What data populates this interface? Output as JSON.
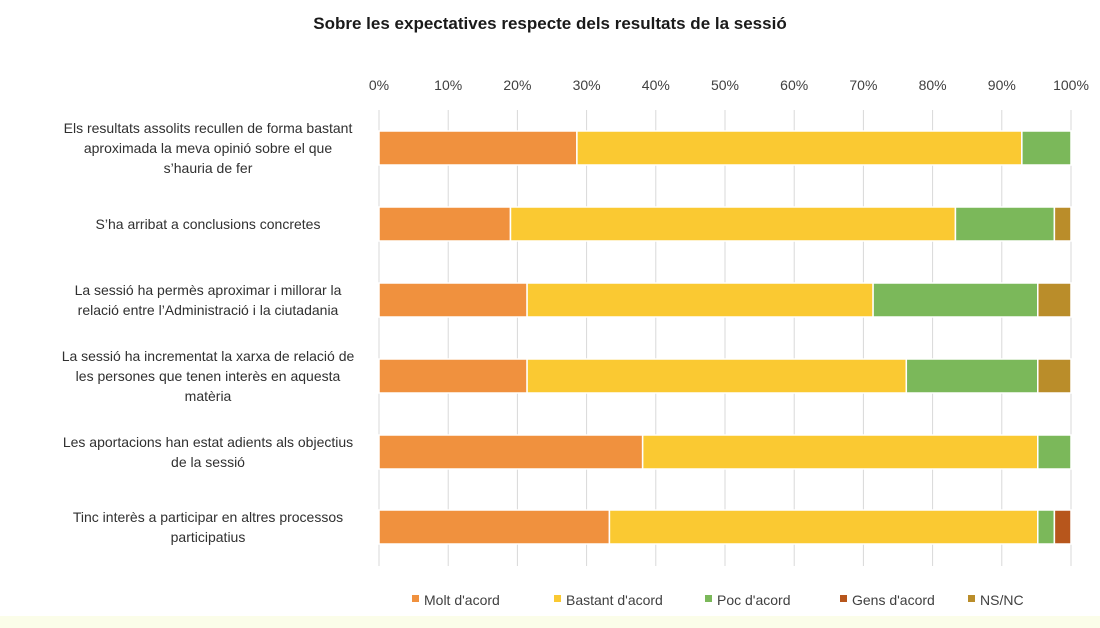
{
  "chart_data": {
    "type": "bar",
    "orientation": "horizontal",
    "stacked": "percent",
    "title": "Sobre les expectatives respecte dels resultats de la sessió",
    "xlim": [
      0,
      100
    ],
    "x_ticks": [
      "0%",
      "10%",
      "20%",
      "30%",
      "40%",
      "50%",
      "60%",
      "70%",
      "80%",
      "90%",
      "100%"
    ],
    "grid": true,
    "legend_position": "bottom",
    "categories": [
      [
        "Els resultats assolits recullen de forma bastant",
        "aproximada la meva opinió sobre el que",
        "s’hauria de fer"
      ],
      [
        "S’ha arribat a conclusions concretes"
      ],
      [
        "La sessió ha permès aproximar i millorar la",
        "relació entre l’Administració i la ciutadania"
      ],
      [
        "La sessió ha incrementat la xarxa de relació de",
        "les persones que tenen interès en aquesta",
        "matèria"
      ],
      [
        "Les aportacions han estat adients als objectius",
        "de la sessió"
      ],
      [
        "Tinc interès a participar en altres processos",
        "participatius"
      ]
    ],
    "series": [
      {
        "name": "Molt d'acord",
        "color": "#f0913e",
        "values": [
          28.6,
          19.0,
          21.4,
          21.4,
          38.1,
          33.3
        ]
      },
      {
        "name": "Bastant d'acord",
        "color": "#fac932",
        "values": [
          64.3,
          64.3,
          50.0,
          54.8,
          57.1,
          61.9
        ]
      },
      {
        "name": "Poc d'acord",
        "color": "#7bb85a",
        "values": [
          7.1,
          14.3,
          23.8,
          19.0,
          4.8,
          2.4
        ]
      },
      {
        "name": "Gens d'acord",
        "color": "#b7561c",
        "values": [
          0,
          0,
          0,
          0,
          0,
          2.4
        ]
      },
      {
        "name": "NS/NC",
        "color": "#ba8d2a",
        "values": [
          0,
          2.4,
          4.8,
          4.8,
          0,
          0
        ]
      }
    ]
  }
}
